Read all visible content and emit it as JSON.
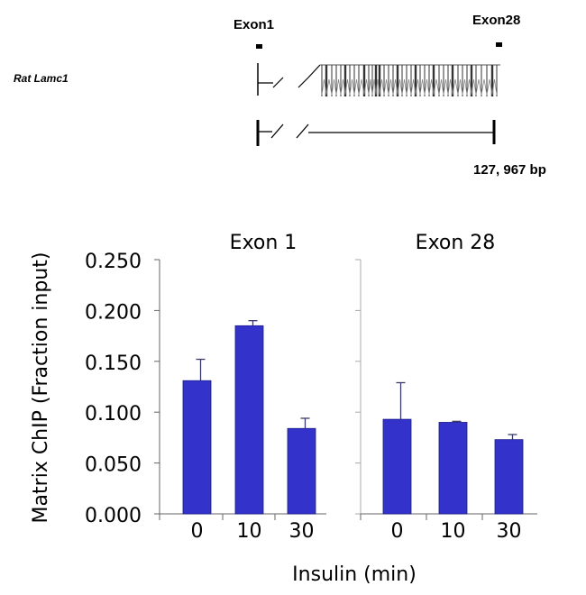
{
  "gene_map": {
    "gene_label": "Rat Lamc1",
    "exon_start_label": "Exon1",
    "exon_end_label": "Exon28",
    "length_label": "127, 967 bp"
  },
  "chart_data": {
    "type": "bar",
    "ylabel": "Matrix ChIP (Fraction input)",
    "xlabel": "Insulin (min)",
    "ylim": [
      0,
      0.25
    ],
    "yticks": [
      "0.000",
      "0.050",
      "0.100",
      "0.150",
      "0.200",
      "0.250"
    ],
    "categories": [
      "0",
      "10",
      "30"
    ],
    "bar_color": "#3333cc",
    "panels": [
      {
        "title": "Exon 1",
        "values": [
          0.131,
          0.185,
          0.084
        ],
        "errors": [
          0.021,
          0.005,
          0.01
        ]
      },
      {
        "title": "Exon 28",
        "values": [
          0.093,
          0.09,
          0.073
        ],
        "errors": [
          0.036,
          0.001,
          0.005
        ]
      }
    ]
  }
}
